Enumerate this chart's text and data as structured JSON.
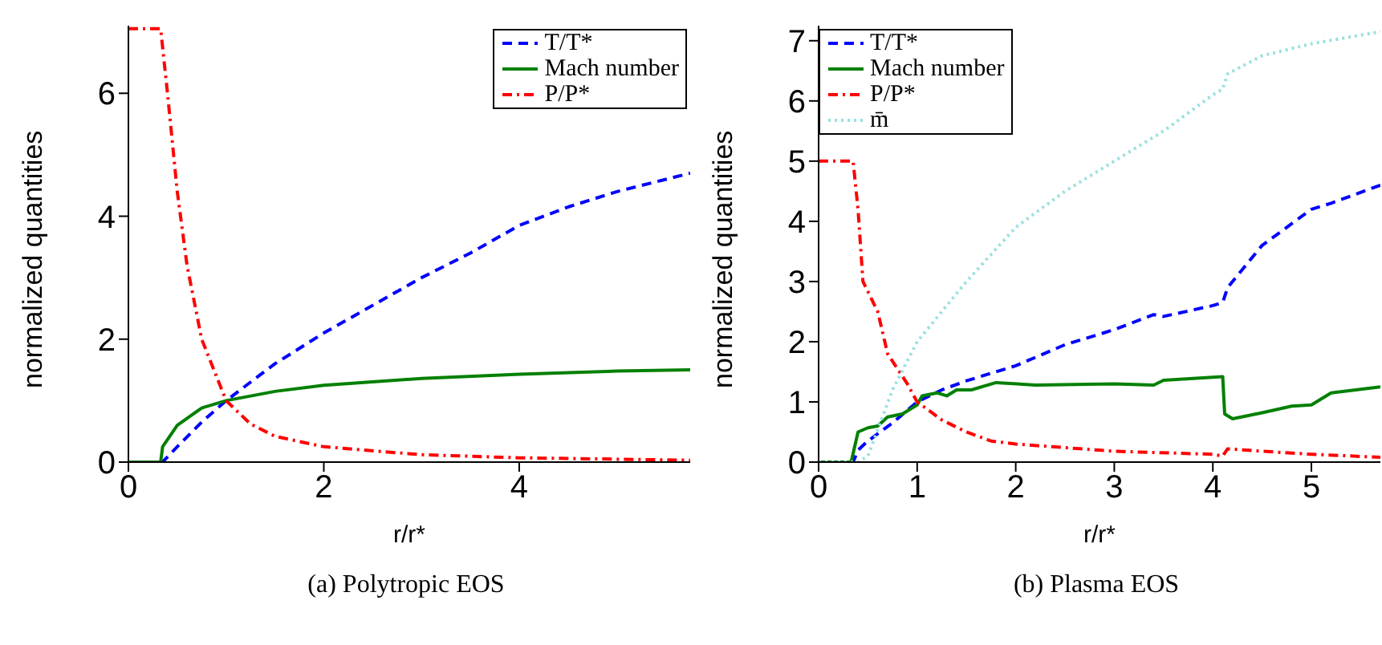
{
  "chart_data": [
    {
      "type": "line",
      "xlabel": "r/r*",
      "ylabel": "normalized quantities",
      "xlim": [
        0,
        5.75
      ],
      "xticks": [
        0,
        2,
        4
      ],
      "ylim": [
        0,
        7.1
      ],
      "yticks": [
        0,
        2,
        4,
        6
      ],
      "grid": false,
      "legend": "top right",
      "annotations": [
        "(a) Polytropic EOS"
      ],
      "series": [
        {
          "name": "T/T*",
          "color": "#0000ff",
          "line_style": "dashed",
          "x": [
            0,
            0.35,
            0.5,
            0.75,
            1,
            1.5,
            2,
            2.5,
            3,
            3.5,
            4,
            4.5,
            5,
            5.75
          ],
          "values": [
            0,
            0,
            0.25,
            0.65,
            1,
            1.6,
            2.1,
            2.55,
            3.0,
            3.4,
            3.85,
            4.15,
            4.4,
            4.7
          ]
        },
        {
          "name": "Mach number",
          "color": "#008000",
          "line_style": "solid",
          "x": [
            0,
            0.33,
            0.35,
            0.5,
            0.75,
            1,
            1.5,
            2,
            3,
            4,
            5,
            5.75
          ],
          "values": [
            0,
            0,
            0.25,
            0.6,
            0.88,
            1.0,
            1.15,
            1.25,
            1.36,
            1.43,
            1.48,
            1.5
          ]
        },
        {
          "name": "P/P*",
          "color": "#ff0000",
          "line_style": "dashdot",
          "x": [
            0,
            0.33,
            0.4,
            0.5,
            0.6,
            0.75,
            1,
            1.25,
            1.5,
            2,
            3,
            4,
            5.75
          ],
          "values": [
            7.05,
            7.05,
            6.0,
            4.4,
            3.2,
            2.0,
            1.0,
            0.62,
            0.42,
            0.25,
            0.12,
            0.07,
            0.03
          ]
        }
      ]
    },
    {
      "type": "line",
      "xlabel": "r/r*",
      "ylabel": "normalized quantities",
      "xlim": [
        0,
        5.7
      ],
      "xticks": [
        0,
        1,
        2,
        3,
        4,
        5
      ],
      "ylim": [
        0,
        7.25
      ],
      "yticks": [
        0,
        1,
        2,
        3,
        4,
        5,
        6,
        7
      ],
      "grid": false,
      "legend": "top left",
      "annotations": [
        "(b) Plasma EOS"
      ],
      "series": [
        {
          "name": "T/T*",
          "color": "#0000ff",
          "line_style": "dashed",
          "x": [
            0,
            0.35,
            0.4,
            0.5,
            0.75,
            1,
            1.25,
            1.5,
            2,
            2.5,
            3,
            3.4,
            3.5,
            4,
            4.1,
            4.15,
            4.5,
            5,
            5.2,
            5.7
          ],
          "values": [
            0,
            0,
            0.2,
            0.35,
            0.65,
            1.0,
            1.2,
            1.35,
            1.6,
            1.95,
            2.2,
            2.45,
            2.42,
            2.6,
            2.65,
            2.9,
            3.6,
            4.2,
            4.3,
            4.6
          ]
        },
        {
          "name": "Mach number",
          "color": "#008000",
          "line_style": "solid",
          "x": [
            0,
            0.33,
            0.4,
            0.5,
            0.6,
            0.7,
            0.85,
            1,
            1.05,
            1.2,
            1.3,
            1.4,
            1.55,
            1.8,
            2.2,
            3,
            3.4,
            3.5,
            4.1,
            4.12,
            4.2,
            4.5,
            4.8,
            5,
            5.2,
            5.7
          ],
          "values": [
            0,
            0,
            0.5,
            0.57,
            0.6,
            0.75,
            0.8,
            0.95,
            1.1,
            1.15,
            1.1,
            1.2,
            1.2,
            1.32,
            1.28,
            1.3,
            1.28,
            1.36,
            1.42,
            0.8,
            0.72,
            0.82,
            0.93,
            0.95,
            1.15,
            1.25
          ]
        },
        {
          "name": "P/P*",
          "color": "#ff0000",
          "line_style": "dashdot",
          "x": [
            0,
            0.35,
            0.4,
            0.45,
            0.6,
            0.7,
            0.9,
            1,
            1.25,
            1.5,
            1.75,
            2,
            3,
            4,
            4.1,
            4.15,
            4.5,
            5,
            5.7
          ],
          "values": [
            5,
            5,
            4.2,
            3.0,
            2.5,
            1.8,
            1.3,
            1.0,
            0.7,
            0.5,
            0.35,
            0.3,
            0.18,
            0.13,
            0.1,
            0.22,
            0.18,
            0.13,
            0.08
          ]
        },
        {
          "name": "m̄",
          "color": "#99e0e0",
          "line_style": "dotted",
          "x": [
            0,
            0.4,
            0.5,
            0.75,
            1,
            1.25,
            1.5,
            2,
            2.5,
            3,
            3.5,
            4,
            4.1,
            4.15,
            4.5,
            5,
            5.7
          ],
          "values": [
            0,
            0,
            0.1,
            1.2,
            2.0,
            2.5,
            3.0,
            3.9,
            4.5,
            5.0,
            5.5,
            6.1,
            6.2,
            6.45,
            6.75,
            6.95,
            7.15
          ]
        }
      ]
    }
  ]
}
